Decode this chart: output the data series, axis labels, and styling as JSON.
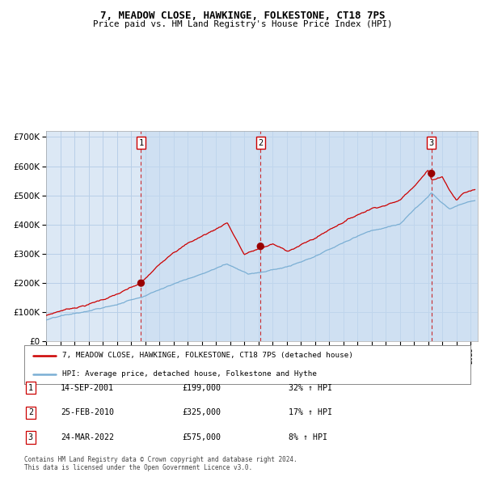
{
  "title": "7, MEADOW CLOSE, HAWKINGE, FOLKESTONE, CT18 7PS",
  "subtitle": "Price paid vs. HM Land Registry's House Price Index (HPI)",
  "background_color": "#ffffff",
  "plot_bg_color": "#dce8f5",
  "grid_color": "#b8cfe8",
  "red_line_color": "#cc0000",
  "blue_line_color": "#7bafd4",
  "sale_marker_color": "#990000",
  "sale_dates_num": [
    2001.71,
    2010.15,
    2022.23
  ],
  "sale_prices": [
    199000,
    325000,
    575000
  ],
  "sale_labels": [
    "1",
    "2",
    "3"
  ],
  "sale_date_strs": [
    "14-SEP-2001",
    "25-FEB-2010",
    "24-MAR-2022"
  ],
  "sale_price_strs": [
    "£199,000",
    "£325,000",
    "£575,000"
  ],
  "sale_pct_strs": [
    "32% ↑ HPI",
    "17% ↑ HPI",
    "8% ↑ HPI"
  ],
  "legend_red": "7, MEADOW CLOSE, HAWKINGE, FOLKESTONE, CT18 7PS (detached house)",
  "legend_blue": "HPI: Average price, detached house, Folkestone and Hythe",
  "copyright": "Contains HM Land Registry data © Crown copyright and database right 2024.\nThis data is licensed under the Open Government Licence v3.0.",
  "xmin": 1995.0,
  "xmax": 2025.5,
  "ymin": 0,
  "ymax": 720000
}
